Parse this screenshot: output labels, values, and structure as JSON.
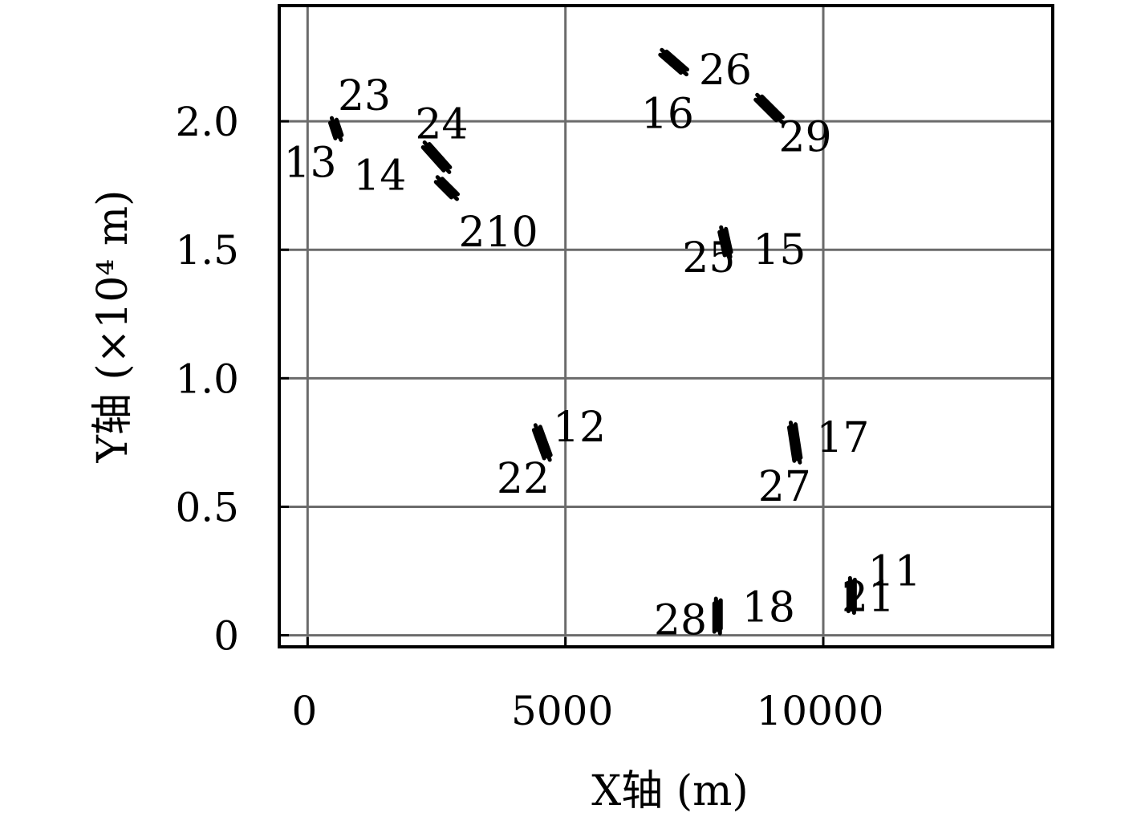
{
  "chart_data": {
    "type": "scatter",
    "xlabel": "X轴 (m)",
    "ylabel": "Y轴 (×10⁴ m)",
    "xlim": [
      -550,
      14450
    ],
    "ylim": [
      -0.045,
      2.45
    ],
    "x_ticks": [
      0,
      5000,
      10000
    ],
    "y_ticks": [
      0,
      0.5,
      1.0,
      1.5,
      2.0
    ],
    "x_tick_labels": [
      "0",
      "5000",
      "10000"
    ],
    "y_tick_labels": [
      "0",
      "0.5",
      "1.0",
      "1.5",
      "2.0"
    ],
    "grid": true,
    "clusters": [
      {
        "x": 550,
        "y": 1.97,
        "dx": 100,
        "dy": -0.06
      },
      {
        "x": 2500,
        "y": 1.86,
        "dx": 400,
        "dy": -0.09
      },
      {
        "x": 2700,
        "y": 1.74,
        "dx": 300,
        "dy": -0.06
      },
      {
        "x": 7100,
        "y": 2.23,
        "dx": 400,
        "dy": -0.07
      },
      {
        "x": 8950,
        "y": 2.05,
        "dx": 400,
        "dy": -0.08
      },
      {
        "x": 8100,
        "y": 1.53,
        "dx": 100,
        "dy": -0.09
      },
      {
        "x": 4550,
        "y": 0.75,
        "dx": 200,
        "dy": -0.11
      },
      {
        "x": 9450,
        "y": 0.75,
        "dx": 100,
        "dy": -0.13
      },
      {
        "x": 7950,
        "y": 0.075,
        "dx": 0,
        "dy": -0.11
      },
      {
        "x": 10550,
        "y": 0.155,
        "dx": 0,
        "dy": -0.11
      }
    ],
    "annotations": [
      {
        "text": "23",
        "x": 1100,
        "y": 2.1
      },
      {
        "text": "13",
        "x": 50,
        "y": 1.84
      },
      {
        "text": "24",
        "x": 2600,
        "y": 1.99
      },
      {
        "text": "14",
        "x": 1400,
        "y": 1.79
      },
      {
        "text": "210",
        "x": 3700,
        "y": 1.57
      },
      {
        "text": "26",
        "x": 8100,
        "y": 2.2
      },
      {
        "text": "16",
        "x": 6980,
        "y": 2.03
      },
      {
        "text": "29",
        "x": 9650,
        "y": 1.94
      },
      {
        "text": "25",
        "x": 7780,
        "y": 1.47
      },
      {
        "text": "15",
        "x": 9150,
        "y": 1.5
      },
      {
        "text": "12",
        "x": 5270,
        "y": 0.81
      },
      {
        "text": "22",
        "x": 4180,
        "y": 0.61
      },
      {
        "text": "17",
        "x": 10380,
        "y": 0.77
      },
      {
        "text": "27",
        "x": 9250,
        "y": 0.58
      },
      {
        "text": "11",
        "x": 11380,
        "y": 0.25
      },
      {
        "text": "21",
        "x": 10870,
        "y": 0.15
      },
      {
        "text": "18",
        "x": 8940,
        "y": 0.11
      },
      {
        "text": "28",
        "x": 7230,
        "y": 0.06
      }
    ]
  }
}
